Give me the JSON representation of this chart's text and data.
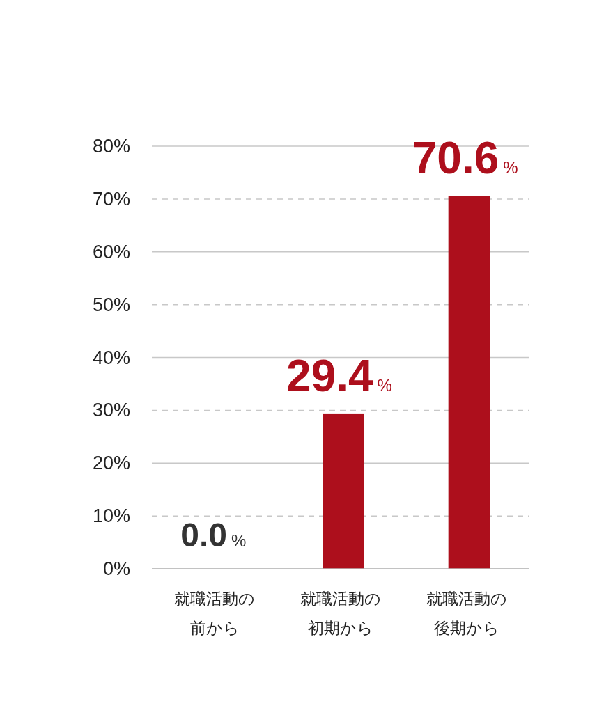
{
  "chart_data": {
    "type": "bar",
    "categories": [
      "就職活動の前から",
      "就職活動の初期から",
      "就職活動の後期から"
    ],
    "values": [
      0.0,
      29.4,
      70.6
    ],
    "color": "#ad0f1c",
    "value_labels": [
      "0.0%",
      "29.4%",
      "70.6%"
    ],
    "ylim": [
      0,
      80
    ],
    "yticks": [
      {
        "value": 0,
        "label": "0%"
      },
      {
        "value": 10,
        "label": "10%"
      },
      {
        "value": 20,
        "label": "20%"
      },
      {
        "value": 30,
        "label": "30%"
      },
      {
        "value": 40,
        "label": "40%"
      },
      {
        "value": 50,
        "label": "50%"
      },
      {
        "value": 60,
        "label": "60%"
      },
      {
        "value": 70,
        "label": "70%"
      },
      {
        "value": 80,
        "label": "80%"
      }
    ],
    "grid": "y"
  }
}
